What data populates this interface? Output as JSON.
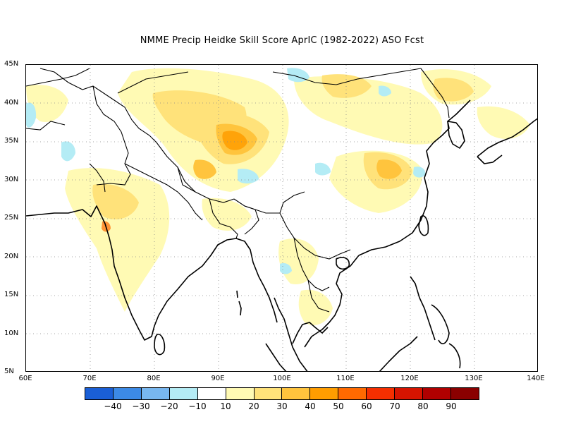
{
  "title": "NMME Precip Heidke Skill Score AprIC (1982-2022) ASO Fcst",
  "lat_labels": [
    "45N",
    "40N",
    "35N",
    "30N",
    "25N",
    "20N",
    "15N",
    "10N",
    "5N"
  ],
  "lon_labels": [
    "60E",
    "70E",
    "80E",
    "90E",
    "100E",
    "110E",
    "120E",
    "130E",
    "140E"
  ],
  "colorbar": {
    "colors": [
      "#1a5fd6",
      "#3c8ae6",
      "#78b7f0",
      "#b4ecf5",
      "#ffffff",
      "#fffab4",
      "#ffe27a",
      "#ffc43d",
      "#ff9d00",
      "#ff6a00",
      "#f52f00",
      "#d61400",
      "#b00000",
      "#8a0000"
    ],
    "labels": [
      "-40",
      "-30",
      "-20",
      "-10",
      "10",
      "20",
      "30",
      "40",
      "50",
      "60",
      "70",
      "80",
      "90"
    ]
  },
  "icons": [
    "map-region",
    "coastline",
    "country-borders",
    "grid-lines",
    "colorbar"
  ]
}
